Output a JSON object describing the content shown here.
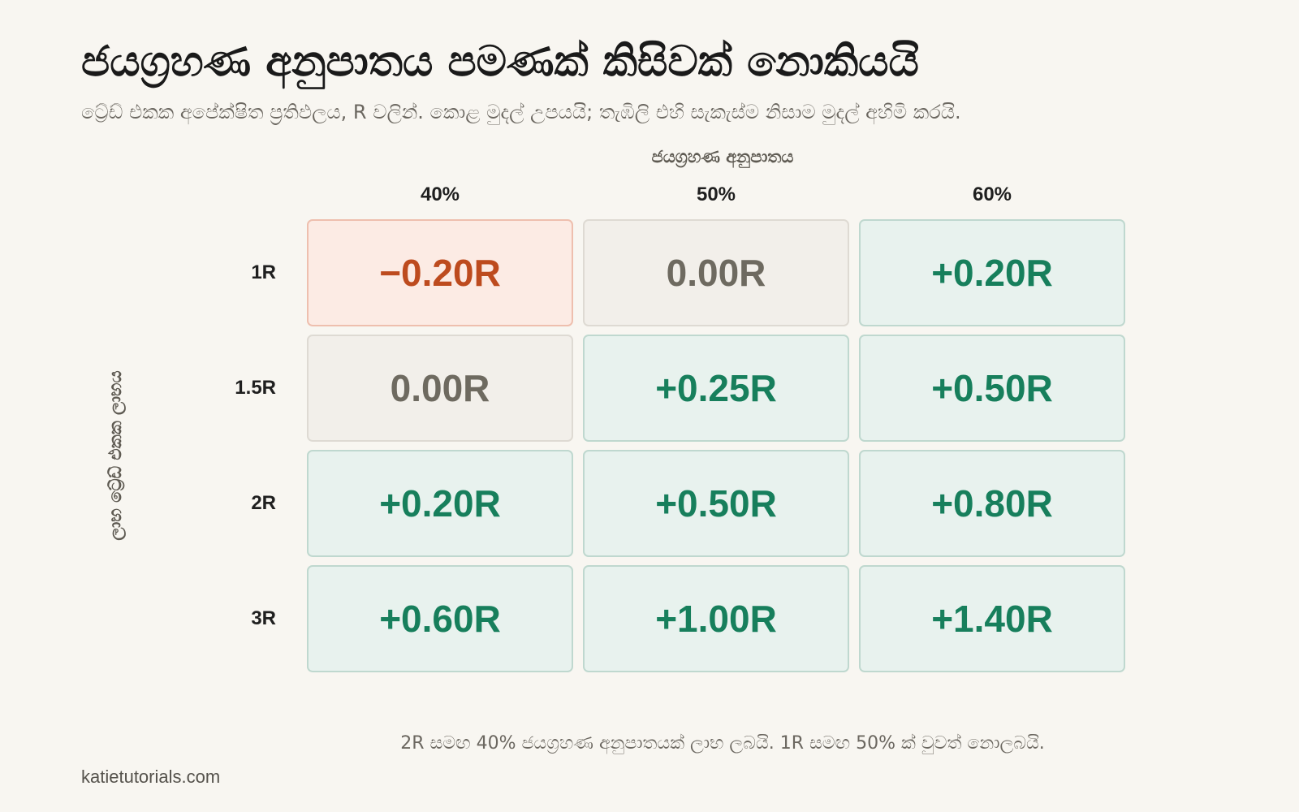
{
  "header": {
    "title": "ජයග්‍රහණ අනුපාතය පමණක් කිසිවක් නොකියයි",
    "subtitle": "ට්‍රේඩ් එකක අපේක්ෂිත ප්‍රතිඵලය, R වලින්. කොළ මුදල් උපයයි; තැඹිලි එහි සැකැස්ම නිසාම මුදල් අහිමි කරයි."
  },
  "footer": {
    "note": "2R සමඟ 40% ජයග්‍රහණ අනුපාතයක් ලාභ ලබයි. 1R සමඟ 50% ක් වුවත් නොලබයි.",
    "source": "katietutorials.com"
  },
  "colors": {
    "positive_text": "#177f5c",
    "positive_fill": "#e8f2ee",
    "negative_text": "#bd4b1e",
    "negative_fill": "#fcebe4",
    "zero_text": "#6e6a60",
    "zero_fill": "#f2efea"
  },
  "chart_data": {
    "type": "heatmap",
    "title": "ජයග්‍රහණ අනුපාතය පමණක් කිසිවක් නොකියයි",
    "xlabel": "ජයග්‍රහණ අනුපාතය",
    "ylabel": "ලාභ ට්‍රේඩ් එකක ලාභය",
    "x_categories": [
      "40%",
      "50%",
      "60%"
    ],
    "y_categories": [
      "1R",
      "1.5R",
      "2R",
      "3R"
    ],
    "values": [
      [
        -0.2,
        0.0,
        0.2
      ],
      [
        0.0,
        0.25,
        0.5
      ],
      [
        0.2,
        0.5,
        0.8
      ],
      [
        0.6,
        1.0,
        1.4
      ]
    ],
    "cell_labels": [
      [
        "−0.20R",
        "0.00R",
        "+0.20R"
      ],
      [
        "0.00R",
        "+0.25R",
        "+0.50R"
      ],
      [
        "+0.20R",
        "+0.50R",
        "+0.80R"
      ],
      [
        "+0.60R",
        "+1.00R",
        "+1.40R"
      ]
    ]
  }
}
